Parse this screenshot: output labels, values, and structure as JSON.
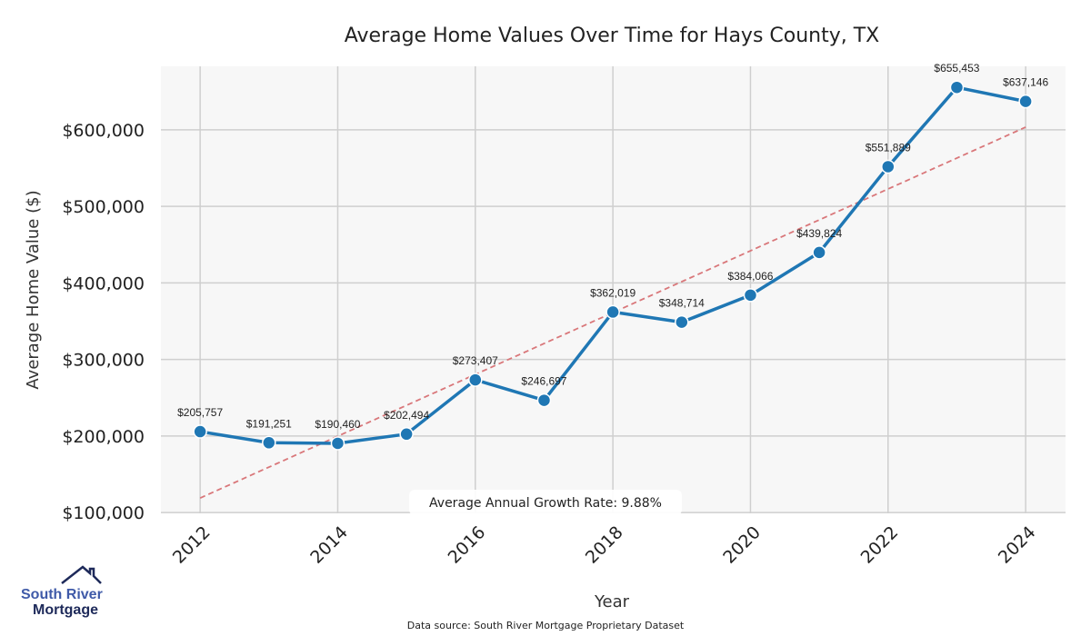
{
  "chart_data": {
    "type": "line",
    "title": "Average Home Values Over Time for Hays County, TX",
    "xlabel": "Year",
    "ylabel": "Average Home Value ($)",
    "x": [
      2012,
      2013,
      2014,
      2015,
      2016,
      2017,
      2018,
      2019,
      2020,
      2021,
      2022,
      2023,
      2024
    ],
    "series": [
      {
        "name": "Average Home Value",
        "color": "#1f77b4",
        "values": [
          205757,
          191251,
          190460,
          202494,
          273407,
          246697,
          362019,
          348714,
          384066,
          439824,
          551889,
          655453,
          637146
        ]
      },
      {
        "name": "Trend",
        "color": "#d9777a",
        "style": "dashed",
        "start": [
          2012,
          119000
        ],
        "end": [
          2024,
          603500
        ]
      }
    ],
    "data_labels": [
      "$205,757",
      "$191,251",
      "$190,460",
      "$202,494",
      "$273,407",
      "$246,697",
      "$362,019",
      "$348,714",
      "$384,066",
      "$439,824",
      "$551,889",
      "$655,453",
      "$637,146"
    ],
    "xticks": [
      2012,
      2014,
      2016,
      2018,
      2020,
      2022,
      2024
    ],
    "xtick_labels": [
      "2012",
      "2014",
      "2016",
      "2018",
      "2020",
      "2022",
      "2024"
    ],
    "yticks": [
      100000,
      200000,
      300000,
      400000,
      500000,
      600000
    ],
    "ytick_labels": [
      "$100,000",
      "$200,000",
      "$300,000",
      "$400,000",
      "$500,000",
      "$600,000"
    ],
    "xlim": [
      2011.43,
      2024.58
    ],
    "ylim": [
      99000,
      683000
    ],
    "grid": true,
    "annotation": "Average Annual Growth Rate: 9.88%"
  },
  "footer": {
    "source": "Data source: South River Mortgage Proprietary Dataset"
  },
  "logo": {
    "line1": "South River",
    "line2": "Mortgage"
  }
}
